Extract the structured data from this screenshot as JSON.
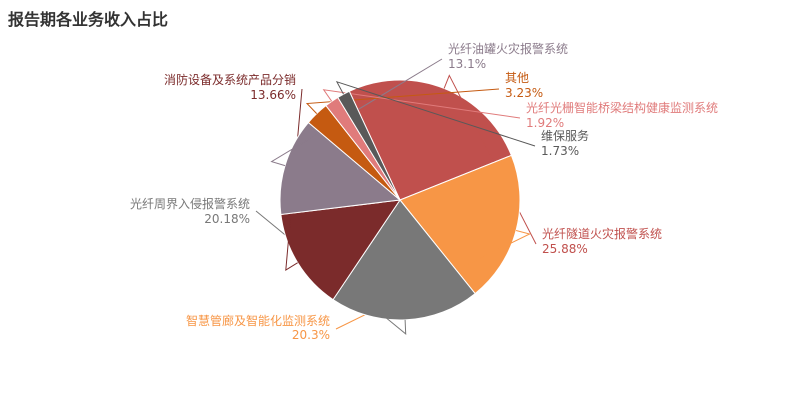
{
  "title": "报告期各业务收入占比",
  "chart_data": {
    "type": "pie",
    "title": "报告期各业务收入占比",
    "legend": "none",
    "slices": [
      {
        "name": "光纤隧道火灾报警系统",
        "value": 25.88,
        "label": "25.88%",
        "color": "#c0504d"
      },
      {
        "name": "智慧管廊及智能化监测系统",
        "value": 20.3,
        "label": "20.3%",
        "color": "#f79646"
      },
      {
        "name": "光纤周界入侵报警系统",
        "value": 20.18,
        "label": "20.18%",
        "color": "#787878"
      },
      {
        "name": "消防设备及系统产品分销",
        "value": 13.66,
        "label": "13.66%",
        "color": "#7b2b2b"
      },
      {
        "name": "光纤油罐火灾报警系统",
        "value": 13.1,
        "label": "13.1%",
        "color": "#8b7b8b"
      },
      {
        "name": "其他",
        "value": 3.23,
        "label": "3.23%",
        "color": "#c55a11"
      },
      {
        "name": "光纤光栅智能桥梁结构健康监测系统",
        "value": 1.92,
        "label": "1.92%",
        "color": "#e07b7b"
      },
      {
        "name": "维保服务",
        "value": 1.73,
        "label": "1.73%",
        "color": "#595959"
      }
    ]
  }
}
